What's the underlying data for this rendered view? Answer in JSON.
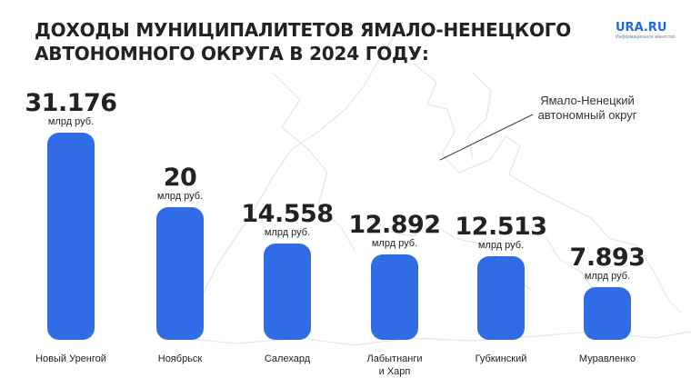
{
  "header": {
    "title_line1": "ДОХОДЫ МУНИЦИПАЛИТЕТОВ ЯМАЛО-НЕНЕЦКОГО",
    "title_line2": "АВТОНОМНОГО ОКРУГА В 2024 ГОДУ:"
  },
  "logo": {
    "name": "URA.RU",
    "tagline": "Информационное агентство"
  },
  "map_label": {
    "line1": "Ямало-Ненецкий",
    "line2": "автономный округ"
  },
  "colors": {
    "bar": "#2f6ce5",
    "logo": "#1c6bd8",
    "map_outline": "#e3e6ec"
  },
  "chart_data": {
    "type": "bar",
    "categories": [
      "Новый Уренгой",
      "Ноябрьск",
      "Салехард",
      "Лабытнанги\nи Харп",
      "Губкинский",
      "Муравленко"
    ],
    "values": [
      31.176,
      20,
      14.558,
      12.892,
      12.513,
      7.893
    ],
    "value_labels": [
      "31.176",
      "20",
      "14.558",
      "12.892",
      "12.513",
      "7.893"
    ],
    "unit_label": "млрд руб.",
    "title": "ДОХОДЫ МУНИЦИПАЛИТЕТОВ ЯМАЛО-НЕНЕЦКОГО АВТОНОМНОГО ОКРУГА В 2024 ГОДУ:",
    "xlabel": "",
    "ylabel": "",
    "ylim": [
      0,
      31.176
    ],
    "grid": false,
    "legend": "none"
  }
}
